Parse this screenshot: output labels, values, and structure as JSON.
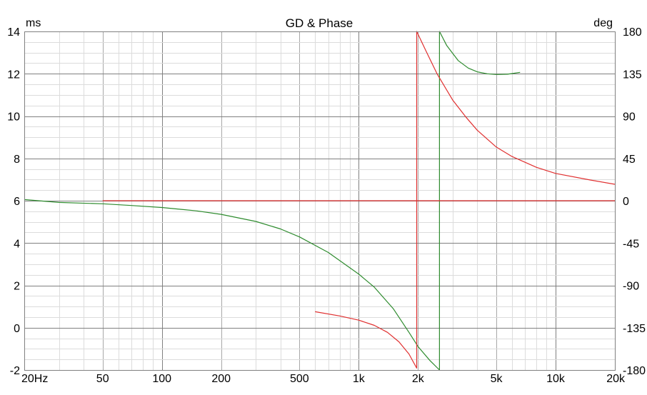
{
  "chart_data": {
    "type": "line",
    "title": "GD & Phase",
    "left_unit": "ms",
    "right_unit": "deg",
    "x_scale": "log",
    "xlim": [
      20,
      20000
    ],
    "ylim_left": [
      -2,
      14
    ],
    "ylim_right": [
      -180,
      180
    ],
    "grid": true,
    "x_ticks": [
      {
        "value": 20,
        "label": "20Hz"
      },
      {
        "value": 50,
        "label": "50"
      },
      {
        "value": 100,
        "label": "100"
      },
      {
        "value": 200,
        "label": "200"
      },
      {
        "value": 500,
        "label": "500"
      },
      {
        "value": 1000,
        "label": "1k"
      },
      {
        "value": 2000,
        "label": "2k"
      },
      {
        "value": 5000,
        "label": "5k"
      },
      {
        "value": 10000,
        "label": "10k"
      },
      {
        "value": 20000,
        "label": "20k"
      }
    ],
    "y_left_ticks": [
      {
        "value": 14,
        "label": "14"
      },
      {
        "value": 12,
        "label": "12"
      },
      {
        "value": 10,
        "label": "10"
      },
      {
        "value": 8,
        "label": "8"
      },
      {
        "value": 6,
        "label": "6"
      },
      {
        "value": 4,
        "label": "4"
      },
      {
        "value": 2,
        "label": "2"
      },
      {
        "value": 0,
        "label": "0"
      },
      {
        "value": -2,
        "label": "-2"
      }
    ],
    "y_right_ticks": [
      {
        "value": 180,
        "label": "180"
      },
      {
        "value": 135,
        "label": "135"
      },
      {
        "value": 90,
        "label": "90"
      },
      {
        "value": 45,
        "label": "45"
      },
      {
        "value": 0,
        "label": "0"
      },
      {
        "value": -45,
        "label": "-45"
      },
      {
        "value": -90,
        "label": "-90"
      },
      {
        "value": -135,
        "label": "-135"
      },
      {
        "value": -180,
        "label": "-180"
      }
    ],
    "series": [
      {
        "axis": "right",
        "color": "#2e8b2e",
        "points": [
          [
            20,
            1.2
          ],
          [
            30,
            -1.8
          ],
          [
            50,
            -3.3
          ],
          [
            70,
            -5.1
          ],
          [
            100,
            -7.2
          ],
          [
            150,
            -10.8
          ],
          [
            200,
            -14.5
          ],
          [
            300,
            -22
          ],
          [
            400,
            -30
          ],
          [
            500,
            -38.5
          ],
          [
            700,
            -55
          ],
          [
            1000,
            -78
          ],
          [
            1200,
            -92
          ],
          [
            1500,
            -115
          ],
          [
            1800,
            -140
          ],
          [
            2000,
            -155
          ],
          [
            2300,
            -170
          ],
          [
            2570,
            -180
          ],
          [
            2570,
            180
          ],
          [
            2800,
            165
          ],
          [
            3200,
            149
          ],
          [
            3600,
            141
          ],
          [
            4000,
            137
          ],
          [
            4500,
            135
          ],
          [
            5000,
            134.2
          ],
          [
            5700,
            134.5
          ],
          [
            6600,
            136.5
          ]
        ]
      },
      {
        "axis": "right",
        "color": "#e03030",
        "points": [
          [
            600,
            -118
          ],
          [
            800,
            -122.5
          ],
          [
            1000,
            -127
          ],
          [
            1200,
            -132.5
          ],
          [
            1400,
            -140
          ],
          [
            1600,
            -150
          ],
          [
            1800,
            -163
          ],
          [
            1970,
            -178
          ],
          [
            1970,
            180
          ],
          [
            2200,
            159
          ],
          [
            2500,
            135
          ],
          [
            3000,
            107
          ],
          [
            3500,
            89
          ],
          [
            4000,
            75
          ],
          [
            5000,
            57
          ],
          [
            6000,
            47
          ],
          [
            8000,
            35.5
          ],
          [
            10000,
            29
          ],
          [
            15000,
            22
          ],
          [
            20000,
            17.5
          ]
        ]
      },
      {
        "axis": "right",
        "color": "#e03030",
        "points": [
          [
            50,
            0
          ],
          [
            20000,
            0
          ]
        ]
      }
    ]
  }
}
